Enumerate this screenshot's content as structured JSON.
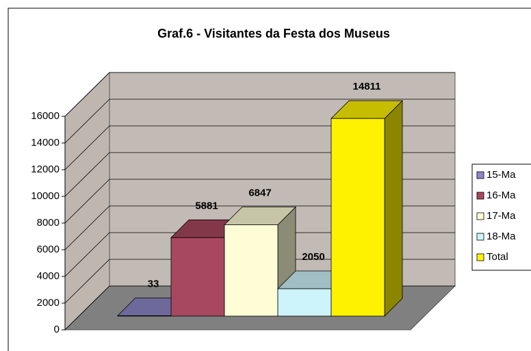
{
  "chart_data": {
    "type": "bar3d",
    "title": "Graf.6 - Visitantes da Festa dos Museus",
    "series": [
      {
        "name": "15-Ma",
        "color": "#8c86c6",
        "values": [
          33
        ]
      },
      {
        "name": "16-Ma",
        "color": "#a8485e",
        "values": [
          5881
        ]
      },
      {
        "name": "17-Ma",
        "color": "#fffdd6",
        "values": [
          6847
        ]
      },
      {
        "name": "18-Ma",
        "color": "#cdf3fb",
        "values": [
          2050
        ]
      },
      {
        "name": "Total",
        "color": "#fff200",
        "values": [
          14811
        ]
      }
    ],
    "ylim": [
      0,
      16000
    ],
    "yticks": [
      0,
      2000,
      4000,
      6000,
      8000,
      10000,
      12000,
      14000,
      16000
    ],
    "grid": true,
    "legend": "right"
  }
}
